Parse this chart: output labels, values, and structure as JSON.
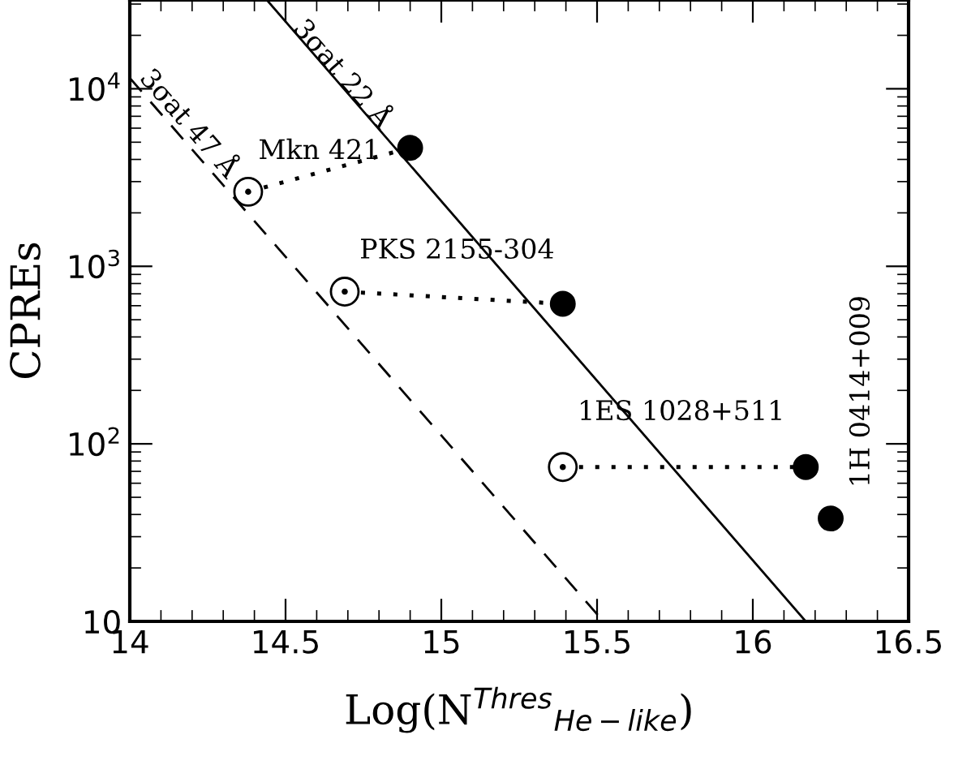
{
  "chart_data": {
    "type": "scatter",
    "xlabel": "Log(N$^{Thres}$$_{He−like}$)",
    "ylabel": "CPREs",
    "xlim": [
      14,
      16.5
    ],
    "xticks": [
      14,
      14.5,
      15,
      15.5,
      16,
      16.5
    ],
    "ylim": [
      10,
      31623
    ],
    "log": "y",
    "yticks": [
      {
        "value": 10,
        "label": "10"
      },
      {
        "value": 100,
        "label": "10$^{2}$"
      },
      {
        "value": 1000,
        "label": "10$^{3}$"
      },
      {
        "value": 10000,
        "label": "10$^{4}$"
      }
    ],
    "grid": false,
    "legend": false,
    "series": [
      {
        "type": "line",
        "color": "#000000",
        "line_style": "solid",
        "x": [
          14.44,
          16.17
        ],
        "values": [
          31623,
          10
        ]
      },
      {
        "type": "line",
        "color": "#000000",
        "line_style": "dashed",
        "x": [
          14.0,
          15.52
        ],
        "values": [
          11500,
          10
        ]
      },
      {
        "type": "line",
        "color": "#000000",
        "line_style": "dotted",
        "x": [
          14.38,
          14.9
        ],
        "values": [
          2630,
          4650
        ]
      },
      {
        "type": "line",
        "color": "#000000",
        "line_style": "dotted",
        "x": [
          14.69,
          15.39
        ],
        "values": [
          720,
          615
        ]
      },
      {
        "type": "line",
        "color": "#000000",
        "line_style": "dotted",
        "x": [
          15.39,
          16.17
        ],
        "values": [
          74,
          74
        ]
      },
      {
        "color": "#000000",
        "marker": "circle",
        "x": [
          14.38,
          14.69,
          15.39
        ],
        "values": [
          2630,
          720,
          74
        ]
      },
      {
        "color": "#000000",
        "marker": "circle",
        "x": [
          14.9,
          15.39,
          16.17,
          16.25
        ],
        "values": [
          4650,
          615,
          74,
          38
        ]
      }
    ],
    "annotations": [
      {
        "text": "3σat 22 Å",
        "x": 14.68,
        "y": 12000
      },
      "3σat 47 Å",
      "Mkn 421",
      "PKS 2155-304",
      "1ES 1028+511",
      "1H 0414+009"
    ]
  }
}
